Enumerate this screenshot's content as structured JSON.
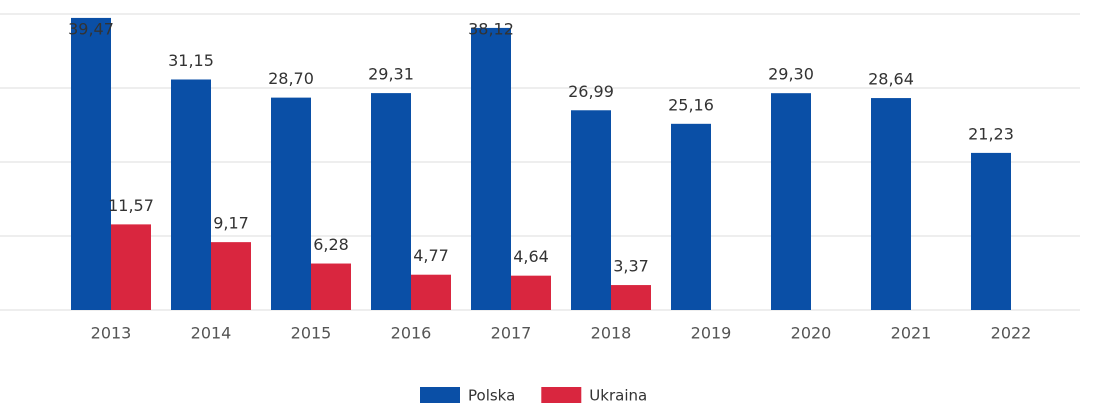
{
  "chart_data": {
    "type": "bar",
    "categories": [
      "2013",
      "2014",
      "2015",
      "2016",
      "2017",
      "2018",
      "2019",
      "2020",
      "2021",
      "2022"
    ],
    "series": [
      {
        "name": "Polska",
        "color": "#0a4fa6",
        "values": [
          39.47,
          31.15,
          28.7,
          29.31,
          38.12,
          26.99,
          25.16,
          29.3,
          28.64,
          21.23
        ],
        "value_labels": [
          "39,47",
          "31,15",
          "28,70",
          "29,31",
          "38,12",
          "26,99",
          "25,16",
          "29,30",
          "28,64",
          "21,23"
        ]
      },
      {
        "name": "Ukraina",
        "color": "#d9263f",
        "values": [
          11.57,
          9.17,
          6.28,
          4.77,
          4.64,
          3.37,
          null,
          null,
          null,
          null
        ],
        "value_labels": [
          "11,57",
          "9,17",
          "6,28",
          "4,77",
          "4,64",
          "3,37",
          null,
          null,
          null,
          null
        ]
      }
    ],
    "ylim": [
      0,
      40
    ],
    "yticks": [
      0,
      10,
      20,
      30,
      40
    ],
    "grid": true,
    "legend": "bottom"
  }
}
